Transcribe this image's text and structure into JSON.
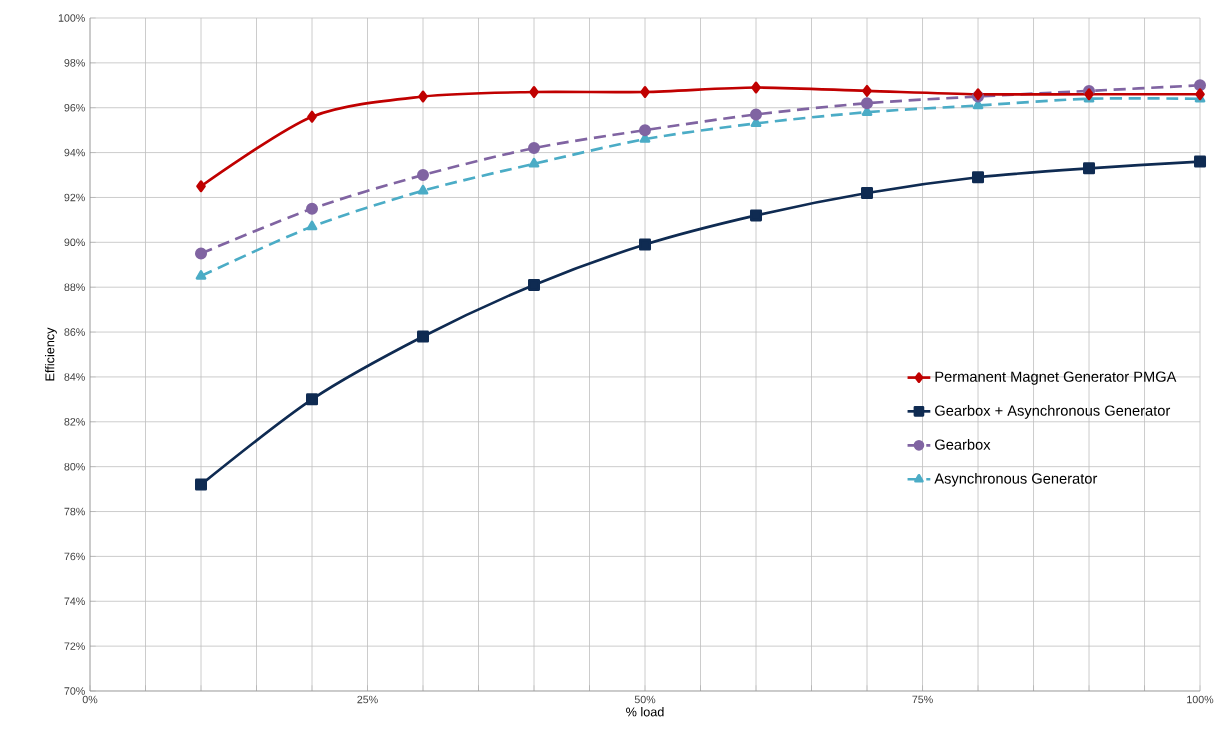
{
  "chart_data": {
    "type": "line",
    "xlabel": "% load",
    "ylabel": "Efficiency",
    "x": [
      10,
      20,
      30,
      40,
      50,
      60,
      70,
      80,
      90,
      100
    ],
    "series": [
      {
        "name": "Permanent Magnet Generator PMGA",
        "color": "#c00000",
        "marker": "diamond",
        "line_style": "solid",
        "values": [
          92.5,
          95.6,
          96.5,
          96.7,
          96.7,
          96.9,
          96.75,
          96.6,
          96.6,
          96.6
        ]
      },
      {
        "name": "Gearbox + Asynchronous Generator",
        "color": "#0f2b52",
        "marker": "square",
        "line_style": "solid",
        "values": [
          79.2,
          83.0,
          85.8,
          88.1,
          89.9,
          91.2,
          92.2,
          92.9,
          93.3,
          93.6
        ]
      },
      {
        "name": "Gearbox",
        "color": "#8064a2",
        "marker": "circle",
        "line_style": "dashed",
        "values": [
          89.5,
          91.5,
          93.0,
          94.2,
          95.0,
          95.7,
          96.2,
          96.5,
          96.75,
          97.0
        ]
      },
      {
        "name": "Asynchronous Generator",
        "color": "#4bacc6",
        "marker": "triangle",
        "line_style": "dashed",
        "values": [
          88.5,
          90.7,
          92.3,
          93.5,
          94.6,
          95.3,
          95.8,
          96.1,
          96.4,
          96.4
        ]
      }
    ],
    "xlim": [
      0,
      100
    ],
    "xticks": [
      {
        "value": 0,
        "label": "0%"
      },
      {
        "value": 5,
        "label": null
      },
      {
        "value": 10,
        "label": null
      },
      {
        "value": 15,
        "label": null
      },
      {
        "value": 20,
        "label": null
      },
      {
        "value": 25,
        "label": "25%"
      },
      {
        "value": 30,
        "label": null
      },
      {
        "value": 35,
        "label": null
      },
      {
        "value": 40,
        "label": null
      },
      {
        "value": 45,
        "label": null
      },
      {
        "value": 50,
        "label": "50%"
      },
      {
        "value": 55,
        "label": null
      },
      {
        "value": 60,
        "label": null
      },
      {
        "value": 65,
        "label": null
      },
      {
        "value": 70,
        "label": null
      },
      {
        "value": 75,
        "label": "75%"
      },
      {
        "value": 80,
        "label": null
      },
      {
        "value": 85,
        "label": null
      },
      {
        "value": 90,
        "label": null
      },
      {
        "value": 95,
        "label": null
      },
      {
        "value": 100,
        "label": "100%"
      }
    ],
    "ylim": [
      70,
      100
    ],
    "yticks": [
      {
        "value": 70,
        "label": "70%"
      },
      {
        "value": 72,
        "label": "72%"
      },
      {
        "value": 74,
        "label": "74%"
      },
      {
        "value": 76,
        "label": "76%"
      },
      {
        "value": 78,
        "label": "78%"
      },
      {
        "value": 80,
        "label": "80%"
      },
      {
        "value": 82,
        "label": "82%"
      },
      {
        "value": 84,
        "label": "84%"
      },
      {
        "value": 86,
        "label": "86%"
      },
      {
        "value": 88,
        "label": "88%"
      },
      {
        "value": 90,
        "label": "90%"
      },
      {
        "value": 92,
        "label": "92%"
      },
      {
        "value": 94,
        "label": "94%"
      },
      {
        "value": 96,
        "label": "96%"
      },
      {
        "value": 98,
        "label": "98%"
      },
      {
        "value": 100,
        "label": "100%"
      }
    ],
    "grid": true,
    "legend": "right"
  }
}
